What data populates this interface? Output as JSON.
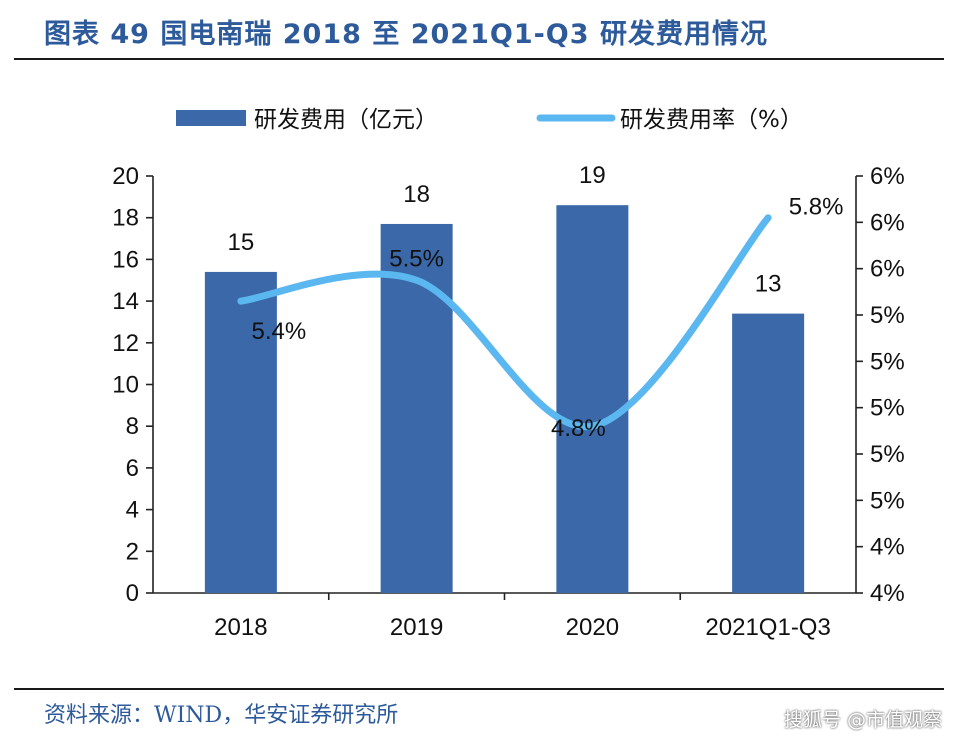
{
  "header": {
    "title": "图表 49 国电南瑞 2018 至 2021Q1-Q3 研发费用情况"
  },
  "footer": {
    "source": "资料来源：WIND，华安证券研究所",
    "watermark": "搜狐号 @市值观察"
  },
  "chart_data": {
    "type": "bar",
    "categories": [
      "2018",
      "2019",
      "2020",
      "2021Q1-Q3"
    ],
    "series": [
      {
        "name": "研发费用（亿元）",
        "type": "bar",
        "axis": "left",
        "values": [
          15.4,
          17.7,
          18.6,
          13.4
        ],
        "labels": [
          "15",
          "18",
          "19",
          "13"
        ],
        "color": "#3a68a8"
      },
      {
        "name": "研发费用率（%）",
        "type": "line",
        "axis": "right",
        "values": [
          5.4,
          5.5,
          4.8,
          5.8
        ],
        "labels": [
          "5.4%",
          "5.5%",
          "4.8%",
          "5.8%"
        ],
        "color": "#5bb7ef"
      }
    ],
    "y_left": {
      "range": [
        0,
        20
      ],
      "ticks": [
        "0",
        "2",
        "4",
        "6",
        "8",
        "10",
        "12",
        "14",
        "16",
        "18",
        "20"
      ]
    },
    "y_right": {
      "range": [
        4.0,
        6.0
      ],
      "ticks": [
        "4%",
        "4%",
        "5%",
        "5%",
        "5%",
        "5%",
        "5%",
        "6%",
        "6%",
        "6%"
      ]
    },
    "grid": false,
    "legend": "top"
  }
}
